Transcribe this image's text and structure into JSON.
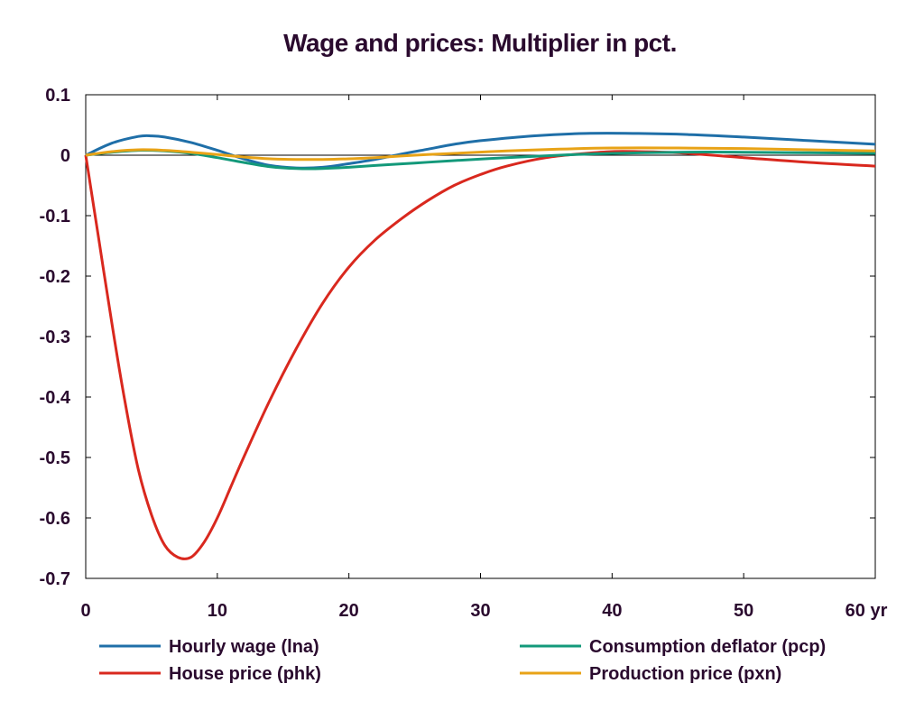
{
  "chart_data": {
    "type": "line",
    "title": "Wage and prices: Multiplier in pct.",
    "xlabel": "",
    "ylabel": "",
    "x_unit_label": "yr",
    "xlim": [
      0,
      60
    ],
    "ylim": [
      -0.7,
      0.1
    ],
    "x_ticks": [
      0,
      10,
      20,
      30,
      40,
      50,
      60
    ],
    "x_tick_labels": [
      "0",
      "10",
      "20",
      "30",
      "40",
      "50",
      "60 yr"
    ],
    "y_ticks": [
      0.1,
      0,
      -0.1,
      -0.2,
      -0.3,
      -0.4,
      -0.5,
      -0.6,
      -0.7
    ],
    "y_tick_labels": [
      "0.1",
      "0",
      "-0.1",
      "-0.2",
      "-0.3",
      "-0.4",
      "-0.5",
      "-0.6",
      "-0.7"
    ],
    "grid": false,
    "legend_position": "bottom",
    "series": [
      {
        "name": "Hourly wage (lna)",
        "color": "#1f6fa8",
        "x": [
          0,
          2,
          4,
          5,
          6,
          8,
          10,
          12,
          14,
          16,
          18,
          20,
          22,
          24,
          26,
          28,
          30,
          34,
          38,
          42,
          46,
          50,
          55,
          60
        ],
        "y": [
          0,
          0.02,
          0.031,
          0.032,
          0.03,
          0.021,
          0.008,
          -0.006,
          -0.017,
          -0.021,
          -0.02,
          -0.014,
          -0.007,
          0.002,
          0.01,
          0.018,
          0.024,
          0.032,
          0.036,
          0.036,
          0.034,
          0.03,
          0.024,
          0.018
        ]
      },
      {
        "name": "House price (phk)",
        "color": "#d9281e",
        "x": [
          0,
          1,
          2,
          3,
          4,
          5,
          6,
          7,
          8,
          9,
          10,
          11,
          12,
          14,
          16,
          18,
          20,
          22,
          24,
          26,
          28,
          30,
          32,
          35,
          38,
          40,
          42,
          45,
          50,
          55,
          60
        ],
        "y": [
          0,
          -0.14,
          -0.28,
          -0.41,
          -0.52,
          -0.595,
          -0.645,
          -0.665,
          -0.665,
          -0.64,
          -0.6,
          -0.55,
          -0.5,
          -0.405,
          -0.32,
          -0.245,
          -0.185,
          -0.14,
          -0.105,
          -0.075,
          -0.05,
          -0.032,
          -0.018,
          -0.004,
          0.003,
          0.006,
          0.006,
          0.004,
          -0.004,
          -0.012,
          -0.018
        ]
      },
      {
        "name": "Consumption deflator (pcp)",
        "color": "#13997a",
        "x": [
          0,
          2,
          4,
          6,
          8,
          10,
          12,
          14,
          16,
          18,
          20,
          22,
          25,
          28,
          32,
          36,
          40,
          45,
          50,
          55,
          60
        ],
        "y": [
          0,
          0.005,
          0.008,
          0.007,
          0.003,
          -0.004,
          -0.012,
          -0.019,
          -0.022,
          -0.022,
          -0.02,
          -0.017,
          -0.013,
          -0.009,
          -0.004,
          0,
          0.003,
          0.005,
          0.005,
          0.004,
          0.003
        ]
      },
      {
        "name": "Production price (pxn)",
        "color": "#e8a317",
        "x": [
          0,
          2,
          4,
          6,
          8,
          10,
          12,
          14,
          16,
          18,
          20,
          22,
          25,
          28,
          32,
          36,
          40,
          45,
          50,
          55,
          60
        ],
        "y": [
          0,
          0.006,
          0.009,
          0.008,
          0.005,
          0.001,
          -0.003,
          -0.006,
          -0.007,
          -0.007,
          -0.006,
          -0.004,
          0,
          0.003,
          0.007,
          0.01,
          0.012,
          0.012,
          0.011,
          0.009,
          0.007
        ]
      }
    ]
  }
}
